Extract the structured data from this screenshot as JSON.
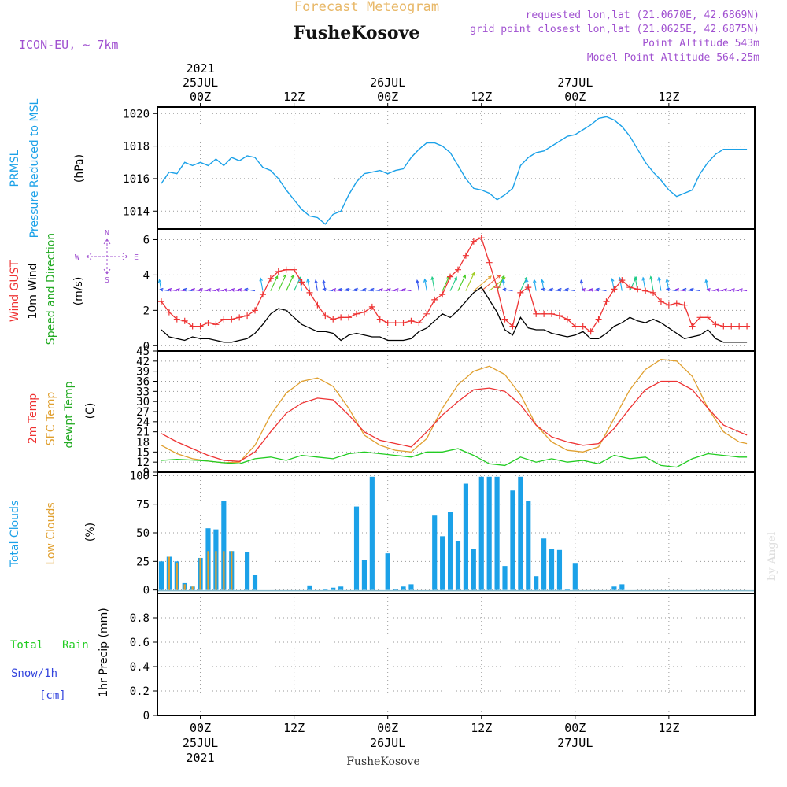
{
  "header": {
    "title": "Forecast Meteogram",
    "station": "FusheKosove",
    "model": "ICON-EU, ~ 7km",
    "requested": "requested lon,lat (21.0670E, 42.6869N)",
    "closest": "grid point closest lon,lat (21.0625E, 42.6875N)",
    "altitude": "Point Altitude 543m",
    "model_altitude": "Model Point Altitude 564.25m",
    "footer_station": "FusheKosove",
    "watermark": "by Angel"
  },
  "colors": {
    "pressure": "#1ba1e8",
    "gust": "#ee3333",
    "wind": "#000000",
    "temp2m": "#ee3333",
    "sfc": "#e0a030",
    "dewpt": "#22cc22",
    "total_clouds": "#1ba1e8",
    "low_clouds": "#e0a030",
    "rain": "#22cc22",
    "snow": "#3344dd",
    "purple_text": "#a050d0",
    "title_orange": "#e8b868"
  },
  "time_axis": {
    "top_labels": [
      {
        "h": 0,
        "lines": [
          "2021",
          "25JUL",
          "00Z"
        ]
      },
      {
        "h": 12,
        "lines": [
          "12Z"
        ]
      },
      {
        "h": 24,
        "lines": [
          "26JUL",
          "00Z"
        ]
      },
      {
        "h": 36,
        "lines": [
          "12Z"
        ]
      },
      {
        "h": 48,
        "lines": [
          "27JUL",
          "00Z"
        ]
      },
      {
        "h": 60,
        "lines": [
          "12Z"
        ]
      }
    ],
    "bottom_labels": [
      {
        "h": 0,
        "lines": [
          "00Z",
          "25JUL",
          "2021"
        ]
      },
      {
        "h": 12,
        "lines": [
          "12Z"
        ]
      },
      {
        "h": 24,
        "lines": [
          "00Z",
          "26JUL"
        ]
      },
      {
        "h": 36,
        "lines": [
          "12Z"
        ]
      },
      {
        "h": 48,
        "lines": [
          "00Z",
          "27JUL"
        ]
      },
      {
        "h": 60,
        "lines": [
          "12Z"
        ]
      }
    ],
    "range_hours": [
      -5.5,
      71
    ]
  },
  "chart_data": [
    {
      "type": "line",
      "ylabel": [
        "PRMSL",
        "Pressure Reduced to MSL"
      ],
      "unit": "(hPa)",
      "yticks": [
        1014,
        1016,
        1018,
        1020
      ],
      "ylim": [
        1012.9,
        1020.4
      ],
      "series": [
        {
          "x": [
            -5,
            -4,
            -3,
            -2,
            -1,
            0,
            1,
            2,
            3,
            4,
            5,
            6,
            7,
            8,
            9,
            10,
            11,
            12,
            13,
            14,
            15,
            16,
            17,
            18,
            19,
            20,
            21,
            22,
            23,
            24,
            25,
            26,
            27,
            28,
            29,
            30,
            31,
            32,
            33,
            34,
            35,
            36,
            37,
            38,
            39,
            40,
            41,
            42,
            43,
            44,
            45,
            46,
            47,
            48,
            49,
            50,
            51,
            52,
            53,
            54,
            55,
            56,
            57,
            58,
            59,
            60,
            61,
            62,
            63,
            64,
            65,
            66,
            67,
            68,
            69,
            70
          ],
          "y": [
            1015.7,
            1016.4,
            1016.3,
            1017.0,
            1016.8,
            1017.0,
            1016.8,
            1017.2,
            1016.8,
            1017.3,
            1017.1,
            1017.4,
            1017.3,
            1016.7,
            1016.5,
            1016.0,
            1015.3,
            1014.7,
            1014.1,
            1013.7,
            1013.6,
            1013.2,
            1013.8,
            1014.0,
            1015.0,
            1015.8,
            1016.3,
            1016.4,
            1016.5,
            1016.3,
            1016.5,
            1016.6,
            1017.3,
            1017.8,
            1018.2,
            1018.2,
            1018.0,
            1017.6,
            1016.8,
            1016.0,
            1015.4,
            1015.3,
            1015.1,
            1014.7,
            1015.0,
            1015.4,
            1016.8,
            1017.3,
            1017.6,
            1017.7,
            1018.0,
            1018.3,
            1018.6,
            1018.7,
            1019.0,
            1019.3,
            1019.7,
            1019.8,
            1019.6,
            1019.2,
            1018.6,
            1017.8,
            1017.0,
            1016.4,
            1015.9,
            1015.3,
            1014.9,
            1015.1,
            1015.3,
            1016.3,
            1017.0,
            1017.5,
            1017.8,
            1017.8,
            1017.8,
            1017.8
          ]
        }
      ]
    },
    {
      "type": "line",
      "ylabel": [
        "Wind GUST",
        "10m Wind",
        "Speed and Direction"
      ],
      "unit": "(m/s)",
      "compass": [
        "N",
        "W",
        "E",
        "S"
      ],
      "yticks": [
        0,
        2,
        4,
        6
      ],
      "ylim": [
        -0.3,
        6.6
      ],
      "series": [
        {
          "name": "Wind GUST",
          "x": [
            -5,
            -4,
            -3,
            -2,
            -1,
            0,
            1,
            2,
            3,
            4,
            5,
            6,
            7,
            8,
            9,
            10,
            11,
            12,
            13,
            14,
            15,
            16,
            17,
            18,
            19,
            20,
            21,
            22,
            23,
            24,
            25,
            26,
            27,
            28,
            29,
            30,
            31,
            32,
            33,
            34,
            35,
            36,
            37,
            38,
            39,
            40,
            41,
            42,
            43,
            44,
            45,
            46,
            47,
            48,
            49,
            50,
            51,
            52,
            53,
            54,
            55,
            56,
            57,
            58,
            59,
            60,
            61,
            62,
            63,
            64,
            65,
            66,
            67,
            68,
            69,
            70
          ],
          "y": [
            2.5,
            1.9,
            1.5,
            1.4,
            1.1,
            1.1,
            1.3,
            1.2,
            1.5,
            1.5,
            1.6,
            1.7,
            2.0,
            2.9,
            3.8,
            4.2,
            4.3,
            4.3,
            3.6,
            3.0,
            2.3,
            1.7,
            1.5,
            1.6,
            1.6,
            1.8,
            1.9,
            2.2,
            1.5,
            1.3,
            1.3,
            1.3,
            1.4,
            1.3,
            1.8,
            2.6,
            2.9,
            3.9,
            4.3,
            5.1,
            5.9,
            6.1,
            4.7,
            3.3,
            1.5,
            1.1,
            3.0,
            3.3,
            1.8,
            1.8,
            1.8,
            1.7,
            1.5,
            1.1,
            1.1,
            0.8,
            1.5,
            2.5,
            3.2,
            3.7,
            3.3,
            3.2,
            3.1,
            3.0,
            2.5,
            2.3,
            2.4,
            2.3,
            1.1,
            1.6,
            1.6,
            1.2,
            1.1,
            1.1,
            1.1,
            1.1
          ]
        },
        {
          "name": "10m Wind",
          "x": [
            -5,
            -4,
            -3,
            -2,
            -1,
            0,
            1,
            2,
            3,
            4,
            5,
            6,
            7,
            8,
            9,
            10,
            11,
            12,
            13,
            14,
            15,
            16,
            17,
            18,
            19,
            20,
            21,
            22,
            23,
            24,
            25,
            26,
            27,
            28,
            29,
            30,
            31,
            32,
            33,
            34,
            35,
            36,
            37,
            38,
            39,
            40,
            41,
            42,
            43,
            44,
            45,
            46,
            47,
            48,
            49,
            50,
            51,
            52,
            53,
            54,
            55,
            56,
            57,
            58,
            59,
            60,
            61,
            62,
            63,
            64,
            65,
            66,
            67,
            68,
            69,
            70
          ],
          "y": [
            0.9,
            0.5,
            0.4,
            0.3,
            0.5,
            0.4,
            0.4,
            0.3,
            0.2,
            0.2,
            0.3,
            0.4,
            0.7,
            1.2,
            1.8,
            2.1,
            2.0,
            1.6,
            1.2,
            1.0,
            0.8,
            0.8,
            0.7,
            0.3,
            0.6,
            0.7,
            0.6,
            0.5,
            0.5,
            0.3,
            0.3,
            0.3,
            0.4,
            0.8,
            1.0,
            1.4,
            1.8,
            1.6,
            2.0,
            2.5,
            3.0,
            3.3,
            2.6,
            1.9,
            0.9,
            0.6,
            1.6,
            1.0,
            0.9,
            0.9,
            0.7,
            0.6,
            0.5,
            0.6,
            0.8,
            0.4,
            0.4,
            0.7,
            1.1,
            1.3,
            1.6,
            1.4,
            1.3,
            1.5,
            1.3,
            1.0,
            0.7,
            0.4,
            0.5,
            0.6,
            0.9,
            0.4,
            0.2,
            0.2,
            0.2,
            0.2
          ]
        }
      ]
    },
    {
      "type": "line",
      "ylabel": [
        "2m Temp",
        "SFC Temp",
        "dewpt Temp"
      ],
      "unit": "(C)",
      "yticks": [
        9,
        12,
        15,
        18,
        21,
        24,
        27,
        30,
        33,
        36,
        39,
        42,
        45
      ],
      "ylim": [
        9,
        45
      ],
      "series": [
        {
          "name": "2m Temp",
          "x": [
            -5,
            -3,
            -1,
            1,
            3,
            5,
            7,
            9,
            11,
            13,
            15,
            17,
            19,
            21,
            23,
            25,
            27,
            29,
            31,
            33,
            35,
            37,
            39,
            41,
            43,
            45,
            47,
            49,
            51,
            53,
            55,
            57,
            59,
            61,
            63,
            65,
            67,
            69,
            70
          ],
          "y": [
            20.5,
            18.0,
            16.0,
            14.0,
            12.5,
            12.2,
            15.0,
            21.0,
            26.5,
            29.5,
            31.0,
            30.5,
            26.0,
            21.0,
            18.5,
            17.5,
            16.5,
            21.0,
            26.0,
            30.0,
            33.5,
            34.0,
            33.0,
            29.0,
            23.0,
            19.5,
            18.0,
            17.0,
            17.5,
            22.0,
            28.0,
            33.5,
            36.0,
            36.0,
            33.5,
            28.0,
            23.0,
            21.0,
            20.0
          ]
        },
        {
          "name": "SFC Temp",
          "x": [
            -5,
            -3,
            -1,
            1,
            3,
            5,
            7,
            9,
            11,
            13,
            15,
            17,
            19,
            21,
            23,
            25,
            27,
            29,
            31,
            33,
            35,
            37,
            39,
            41,
            43,
            45,
            47,
            49,
            51,
            53,
            55,
            57,
            59,
            61,
            63,
            65,
            67,
            69,
            70
          ],
          "y": [
            17.0,
            14.5,
            13.0,
            12.3,
            11.8,
            12.0,
            17.0,
            26.0,
            32.5,
            36.0,
            37.0,
            34.5,
            28.0,
            20.0,
            17.0,
            15.5,
            15.0,
            19.0,
            28.0,
            35.0,
            39.0,
            40.5,
            38.0,
            32.0,
            23.0,
            18.0,
            15.5,
            15.0,
            16.5,
            25.0,
            33.5,
            39.5,
            42.5,
            42.0,
            37.5,
            28.0,
            21.0,
            18.0,
            17.5
          ]
        },
        {
          "name": "dewpt Temp",
          "x": [
            -5,
            -3,
            -1,
            1,
            3,
            5,
            7,
            9,
            11,
            13,
            15,
            17,
            19,
            21,
            23,
            25,
            27,
            29,
            31,
            33,
            35,
            37,
            39,
            41,
            43,
            45,
            47,
            49,
            51,
            53,
            55,
            57,
            59,
            61,
            63,
            65,
            67,
            69,
            70
          ],
          "y": [
            12.5,
            12.8,
            12.6,
            12.3,
            11.8,
            11.5,
            13.0,
            13.5,
            12.5,
            14.0,
            13.5,
            13.0,
            14.5,
            15.0,
            14.5,
            14.0,
            13.5,
            15.0,
            15.0,
            16.0,
            14.0,
            11.5,
            11.0,
            13.5,
            12.0,
            13.0,
            12.0,
            12.5,
            11.5,
            14.0,
            13.0,
            13.5,
            11.0,
            10.5,
            13.0,
            14.5,
            14.0,
            13.5,
            13.5
          ]
        }
      ]
    },
    {
      "type": "bar",
      "ylabel": [
        "Total Clouds",
        "Low Clouds"
      ],
      "unit": "(%)",
      "yticks": [
        0,
        25,
        50,
        75,
        100
      ],
      "ylim": [
        -3,
        103
      ],
      "x": [
        -5,
        -4,
        -3,
        -2,
        -1,
        0,
        1,
        2,
        3,
        4,
        5,
        6,
        7,
        8,
        9,
        10,
        11,
        12,
        13,
        14,
        15,
        16,
        17,
        18,
        19,
        20,
        21,
        22,
        23,
        24,
        25,
        26,
        27,
        28,
        29,
        30,
        31,
        32,
        33,
        34,
        35,
        36,
        37,
        38,
        39,
        40,
        41,
        42,
        43,
        44,
        45,
        46,
        47,
        48,
        49,
        50,
        51,
        52,
        53,
        54,
        55,
        56,
        57,
        58,
        59,
        60,
        61,
        62,
        63,
        64,
        65,
        66,
        67,
        68,
        69,
        70
      ],
      "series": [
        {
          "name": "Total Clouds",
          "values": [
            25,
            29,
            25,
            6,
            3,
            28,
            54,
            53,
            78,
            34,
            0,
            33,
            13,
            0,
            0,
            0,
            0,
            0,
            0,
            4,
            0,
            1,
            2,
            3,
            0,
            73,
            26,
            99,
            0,
            32,
            1,
            3,
            5,
            0,
            0,
            65,
            47,
            68,
            43,
            93,
            36,
            99,
            99,
            99,
            21,
            87,
            99,
            78,
            12,
            45,
            36,
            35,
            1,
            23,
            0,
            0,
            0,
            0,
            3,
            5,
            0,
            0,
            0,
            0,
            0,
            0,
            0,
            0,
            0,
            0,
            0,
            0,
            0,
            0,
            0,
            0
          ]
        },
        {
          "name": "Low Clouds",
          "values": [
            0,
            29,
            24,
            5,
            3,
            28,
            34,
            34,
            34,
            34,
            0,
            0,
            0,
            0,
            0,
            0,
            0,
            0,
            0,
            0,
            0,
            0,
            0,
            0,
            0,
            0,
            0,
            0,
            0,
            0,
            0,
            0,
            0,
            0,
            0,
            0,
            0,
            0,
            0,
            0,
            0,
            0,
            0,
            0,
            0,
            0,
            0,
            0,
            0,
            0,
            0,
            0,
            0,
            0,
            0,
            0,
            0,
            0,
            0,
            0,
            0,
            0,
            0,
            0,
            0,
            0,
            0,
            0,
            0,
            0,
            0,
            0,
            0,
            0,
            0,
            0
          ]
        }
      ]
    },
    {
      "type": "bar",
      "ylabel": [
        "1hr Precip (mm)"
      ],
      "legend_left": [
        "Total",
        "Rain",
        "Snow/1h",
        "[cm]"
      ],
      "yticks": [
        "0",
        "0.2",
        "0.4",
        "0.6",
        "0.8"
      ],
      "ylim": [
        0,
        1.0
      ],
      "series": [
        {
          "name": "Total",
          "values": []
        },
        {
          "name": "Rain",
          "values": []
        },
        {
          "name": "Snow/1h",
          "values": []
        }
      ]
    }
  ]
}
